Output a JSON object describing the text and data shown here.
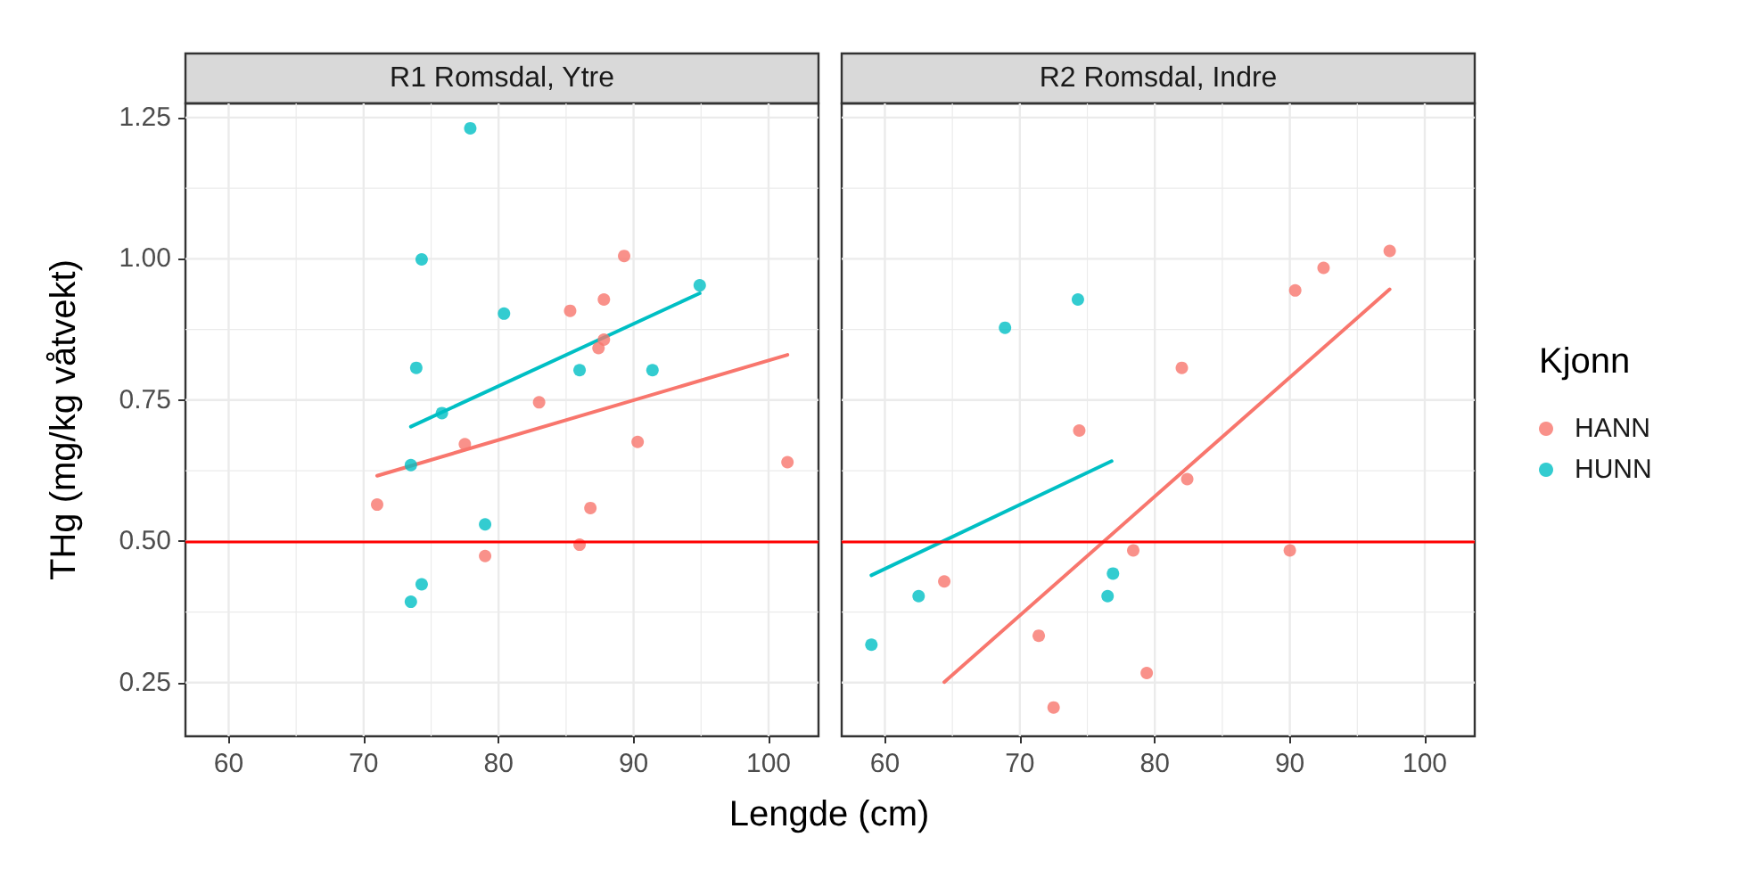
{
  "chart_data": [
    {
      "type": "scatter",
      "title": "R1 Romsdal, Ytre",
      "xlabel": "Lengde (cm)",
      "ylabel": "THg (mg/kg våtvekt)",
      "xlim": [
        56.8,
        103.7
      ],
      "xticks": [
        60,
        70,
        80,
        90,
        100
      ],
      "ylim": [
        0.155,
        1.275
      ],
      "yticks": [
        0.25,
        {
          "value": 0.5,
          "label": "0.50"
        },
        0.75,
        {
          "value": 1.0,
          "label": "1.00"
        },
        1.25
      ],
      "grid": true,
      "ref_lines": [
        {
          "axis": "y",
          "value": 0.5,
          "color": "#ff0000"
        }
      ],
      "series": [
        {
          "marker": "circle",
          "color": "#f8766d",
          "x": [
            71.0,
            77.5,
            79.0,
            83.0,
            85.3,
            86.0,
            86.8,
            87.4,
            87.8,
            87.8,
            89.3,
            90.3,
            101.4
          ],
          "values": [
            0.565,
            0.672,
            0.474,
            0.746,
            0.908,
            0.494,
            0.559,
            0.842,
            0.857,
            0.928,
            1.005,
            0.676,
            0.64
          ]
        },
        {
          "marker": "circle",
          "color": "#00bfc4",
          "x": [
            77.9,
            74.3,
            73.9,
            80.4,
            75.8,
            73.5,
            86.0,
            91.4,
            94.9,
            79.0,
            74.3,
            73.5
          ],
          "values": [
            1.231,
            0.999,
            0.807,
            0.903,
            0.727,
            0.635,
            0.803,
            0.803,
            0.953,
            0.53,
            0.424,
            0.393
          ]
        },
        {
          "type": "line",
          "marker": "none",
          "color": "#f8766d",
          "x": [
            71.0,
            101.4
          ],
          "values": [
            0.616,
            0.83
          ]
        },
        {
          "type": "line",
          "marker": "none",
          "color": "#00bfc4",
          "x": [
            73.5,
            94.9
          ],
          "values": [
            0.703,
            0.939
          ]
        }
      ]
    },
    {
      "type": "scatter",
      "title": "R2 Romsdal, Indre",
      "legend": "right",
      "legend_title": "Kjonn",
      "tick_labels": "x",
      "xlim": [
        56.8,
        103.7
      ],
      "xticks": [
        60,
        70,
        80,
        90,
        100
      ],
      "ylim": [
        0.155,
        1.275
      ],
      "yticks": [
        0.25,
        0.5,
        0.75,
        1.0,
        1.25
      ],
      "grid": true,
      "ref_lines": [
        {
          "axis": "y",
          "value": 0.5,
          "color": "#ff0000"
        }
      ],
      "series": [
        {
          "name": "HANN",
          "marker": "circle",
          "color": "#f8766d",
          "x": [
            64.4,
            71.4,
            72.5,
            74.4,
            78.4,
            79.4,
            82.0,
            82.4,
            90.0,
            90.4,
            92.5,
            97.4
          ],
          "values": [
            0.429,
            0.333,
            0.206,
            0.696,
            0.484,
            0.267,
            0.807,
            0.61,
            0.484,
            0.944,
            0.984,
            1.014
          ]
        },
        {
          "name": "HUNN",
          "marker": "circle",
          "color": "#00bfc4",
          "x": [
            59.0,
            62.5,
            68.9,
            74.3,
            76.5,
            76.9
          ],
          "values": [
            0.317,
            0.403,
            0.878,
            0.928,
            0.403,
            0.443
          ]
        },
        {
          "type": "line",
          "marker": "none",
          "color": "#f8766d",
          "x": [
            64.4,
            97.4
          ],
          "values": [
            0.251,
            0.946
          ]
        },
        {
          "type": "line",
          "marker": "none",
          "color": "#00bfc4",
          "x": [
            59.0,
            76.8
          ],
          "values": [
            0.44,
            0.642
          ]
        }
      ]
    }
  ]
}
